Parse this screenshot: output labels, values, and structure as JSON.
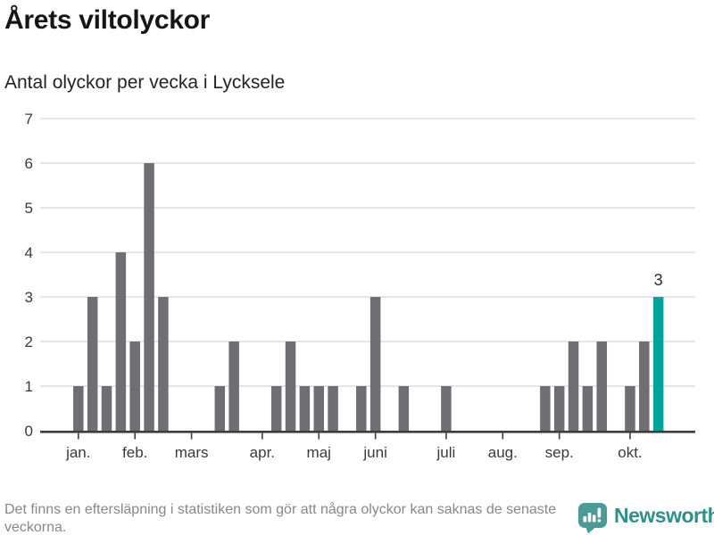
{
  "header": {
    "title": "Årets viltolyckor",
    "subtitle": "Antal olyckor per vecka i Lycksele"
  },
  "chart_data": {
    "type": "bar",
    "title": "Årets viltolyckor",
    "subtitle": "Antal olyckor per vecka i Lycksele",
    "x_unit": "vecka",
    "first_week": 1,
    "values": [
      1,
      3,
      1,
      4,
      2,
      6,
      3,
      0,
      0,
      0,
      1,
      2,
      0,
      0,
      1,
      2,
      1,
      1,
      1,
      0,
      1,
      3,
      0,
      1,
      0,
      0,
      1,
      0,
      0,
      0,
      0,
      0,
      0,
      1,
      1,
      2,
      1,
      2,
      0,
      1,
      2,
      3
    ],
    "highlight_last": true,
    "highlight_value_label": "3",
    "y_ticks": [
      0,
      1,
      2,
      3,
      4,
      5,
      6,
      7
    ],
    "ylim": [
      0,
      7
    ],
    "grid": "horizontal",
    "month_ticks": [
      {
        "label": "jan.",
        "week_index": 0
      },
      {
        "label": "feb.",
        "week_index": 4
      },
      {
        "label": "mars",
        "week_index": 8
      },
      {
        "label": "apr.",
        "week_index": 13
      },
      {
        "label": "maj",
        "week_index": 17
      },
      {
        "label": "juni",
        "week_index": 21
      },
      {
        "label": "juli",
        "week_index": 26
      },
      {
        "label": "aug.",
        "week_index": 30
      },
      {
        "label": "sep.",
        "week_index": 34
      },
      {
        "label": "okt.",
        "week_index": 39
      }
    ],
    "colors": {
      "bar": "#6e6e73",
      "highlight": "#04a39b",
      "grid": "#e5e5e5",
      "axis": "#3d3d3d",
      "tick_text": "#3a3a3a"
    }
  },
  "footer": {
    "note": "Det finns en eftersläpning i statistiken som gör att några olyckor kan saknas de senaste veckorna.",
    "brand": "Newsworthy",
    "brand_color": "#2e8f8b",
    "brand_icon": "newsworthy-bubble-barchart-exclamation",
    "brand_icon_color": "#4a9b97"
  }
}
